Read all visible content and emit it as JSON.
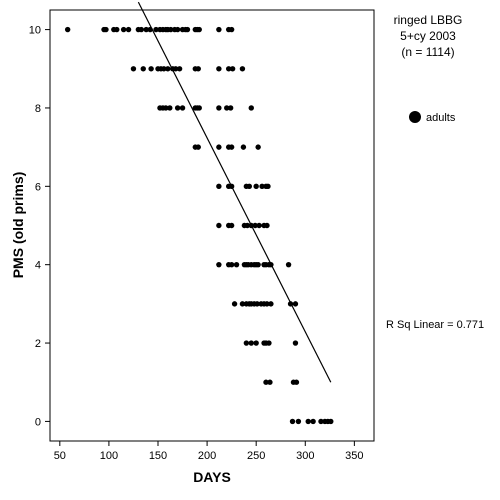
{
  "chart_data": {
    "type": "scatter",
    "title_lines": [
      "ringed LBBG",
      "5+cy 2003",
      "(n = 1114)"
    ],
    "xlabel": "DAYS",
    "ylabel": "PMS (old prims)",
    "xlim": [
      40,
      370
    ],
    "ylim": [
      -0.5,
      10.5
    ],
    "xticks": [
      50,
      100,
      150,
      200,
      250,
      300,
      350
    ],
    "yticks": [
      0,
      2,
      4,
      6,
      8,
      10
    ],
    "grid": false,
    "legend": {
      "placement": "right",
      "entries": [
        {
          "label": "adults"
        }
      ]
    },
    "annotation": "R Sq Linear = 0.771",
    "series": [
      {
        "name": "adults",
        "color": "#000000",
        "points": [
          [
            58,
            10
          ],
          [
            95,
            10
          ],
          [
            97,
            10
          ],
          [
            105,
            10
          ],
          [
            108,
            10
          ],
          [
            115,
            10
          ],
          [
            120,
            10
          ],
          [
            130,
            10
          ],
          [
            133,
            10
          ],
          [
            138,
            10
          ],
          [
            142,
            10
          ],
          [
            148,
            10
          ],
          [
            152,
            10
          ],
          [
            155,
            10
          ],
          [
            158,
            10
          ],
          [
            160,
            10
          ],
          [
            163,
            10
          ],
          [
            167,
            10
          ],
          [
            170,
            10
          ],
          [
            175,
            10
          ],
          [
            178,
            10
          ],
          [
            180,
            10
          ],
          [
            188,
            10
          ],
          [
            190,
            10
          ],
          [
            192,
            10
          ],
          [
            212,
            10
          ],
          [
            222,
            10
          ],
          [
            225,
            10
          ],
          [
            125,
            9
          ],
          [
            135,
            9
          ],
          [
            143,
            9
          ],
          [
            150,
            9
          ],
          [
            153,
            9
          ],
          [
            156,
            9
          ],
          [
            160,
            9
          ],
          [
            165,
            9
          ],
          [
            168,
            9
          ],
          [
            172,
            9
          ],
          [
            188,
            9
          ],
          [
            191,
            9
          ],
          [
            212,
            9
          ],
          [
            222,
            9
          ],
          [
            226,
            9
          ],
          [
            236,
            9
          ],
          [
            152,
            8
          ],
          [
            155,
            8
          ],
          [
            158,
            8
          ],
          [
            162,
            8
          ],
          [
            170,
            8
          ],
          [
            175,
            8
          ],
          [
            188,
            8
          ],
          [
            190,
            8
          ],
          [
            192,
            8
          ],
          [
            212,
            8
          ],
          [
            220,
            8
          ],
          [
            224,
            8
          ],
          [
            245,
            8
          ],
          [
            188,
            7
          ],
          [
            191,
            7
          ],
          [
            212,
            7
          ],
          [
            222,
            7
          ],
          [
            225,
            7
          ],
          [
            237,
            7
          ],
          [
            252,
            7
          ],
          [
            212,
            6
          ],
          [
            222,
            6
          ],
          [
            225,
            6
          ],
          [
            240,
            6
          ],
          [
            243,
            6
          ],
          [
            250,
            6
          ],
          [
            256,
            6
          ],
          [
            260,
            6
          ],
          [
            262,
            6
          ],
          [
            212,
            5
          ],
          [
            222,
            5
          ],
          [
            225,
            5
          ],
          [
            238,
            5
          ],
          [
            241,
            5
          ],
          [
            245,
            5
          ],
          [
            249,
            5
          ],
          [
            253,
            5
          ],
          [
            258,
            5
          ],
          [
            261,
            5
          ],
          [
            212,
            4
          ],
          [
            222,
            4
          ],
          [
            225,
            4
          ],
          [
            230,
            4
          ],
          [
            238,
            4
          ],
          [
            240,
            4
          ],
          [
            242,
            4
          ],
          [
            245,
            4
          ],
          [
            248,
            4
          ],
          [
            250,
            4
          ],
          [
            252,
            4
          ],
          [
            258,
            4
          ],
          [
            260,
            4
          ],
          [
            263,
            4
          ],
          [
            265,
            4
          ],
          [
            283,
            4
          ],
          [
            228,
            3
          ],
          [
            236,
            3
          ],
          [
            240,
            3
          ],
          [
            243,
            3
          ],
          [
            245,
            3
          ],
          [
            248,
            3
          ],
          [
            251,
            3
          ],
          [
            255,
            3
          ],
          [
            258,
            3
          ],
          [
            261,
            3
          ],
          [
            265,
            3
          ],
          [
            285,
            3
          ],
          [
            290,
            3
          ],
          [
            240,
            2
          ],
          [
            245,
            2
          ],
          [
            250,
            2
          ],
          [
            258,
            2
          ],
          [
            260,
            2
          ],
          [
            263,
            2
          ],
          [
            290,
            2
          ],
          [
            260,
            1
          ],
          [
            264,
            1
          ],
          [
            288,
            1
          ],
          [
            291,
            1
          ],
          [
            287,
            0
          ],
          [
            293,
            0
          ],
          [
            303,
            0
          ],
          [
            308,
            0
          ],
          [
            316,
            0
          ],
          [
            320,
            0
          ],
          [
            323,
            0
          ],
          [
            326,
            0
          ]
        ]
      }
    ],
    "fit_line": {
      "x": [
        130,
        326
      ],
      "y": [
        10.7,
        1.0
      ]
    }
  }
}
